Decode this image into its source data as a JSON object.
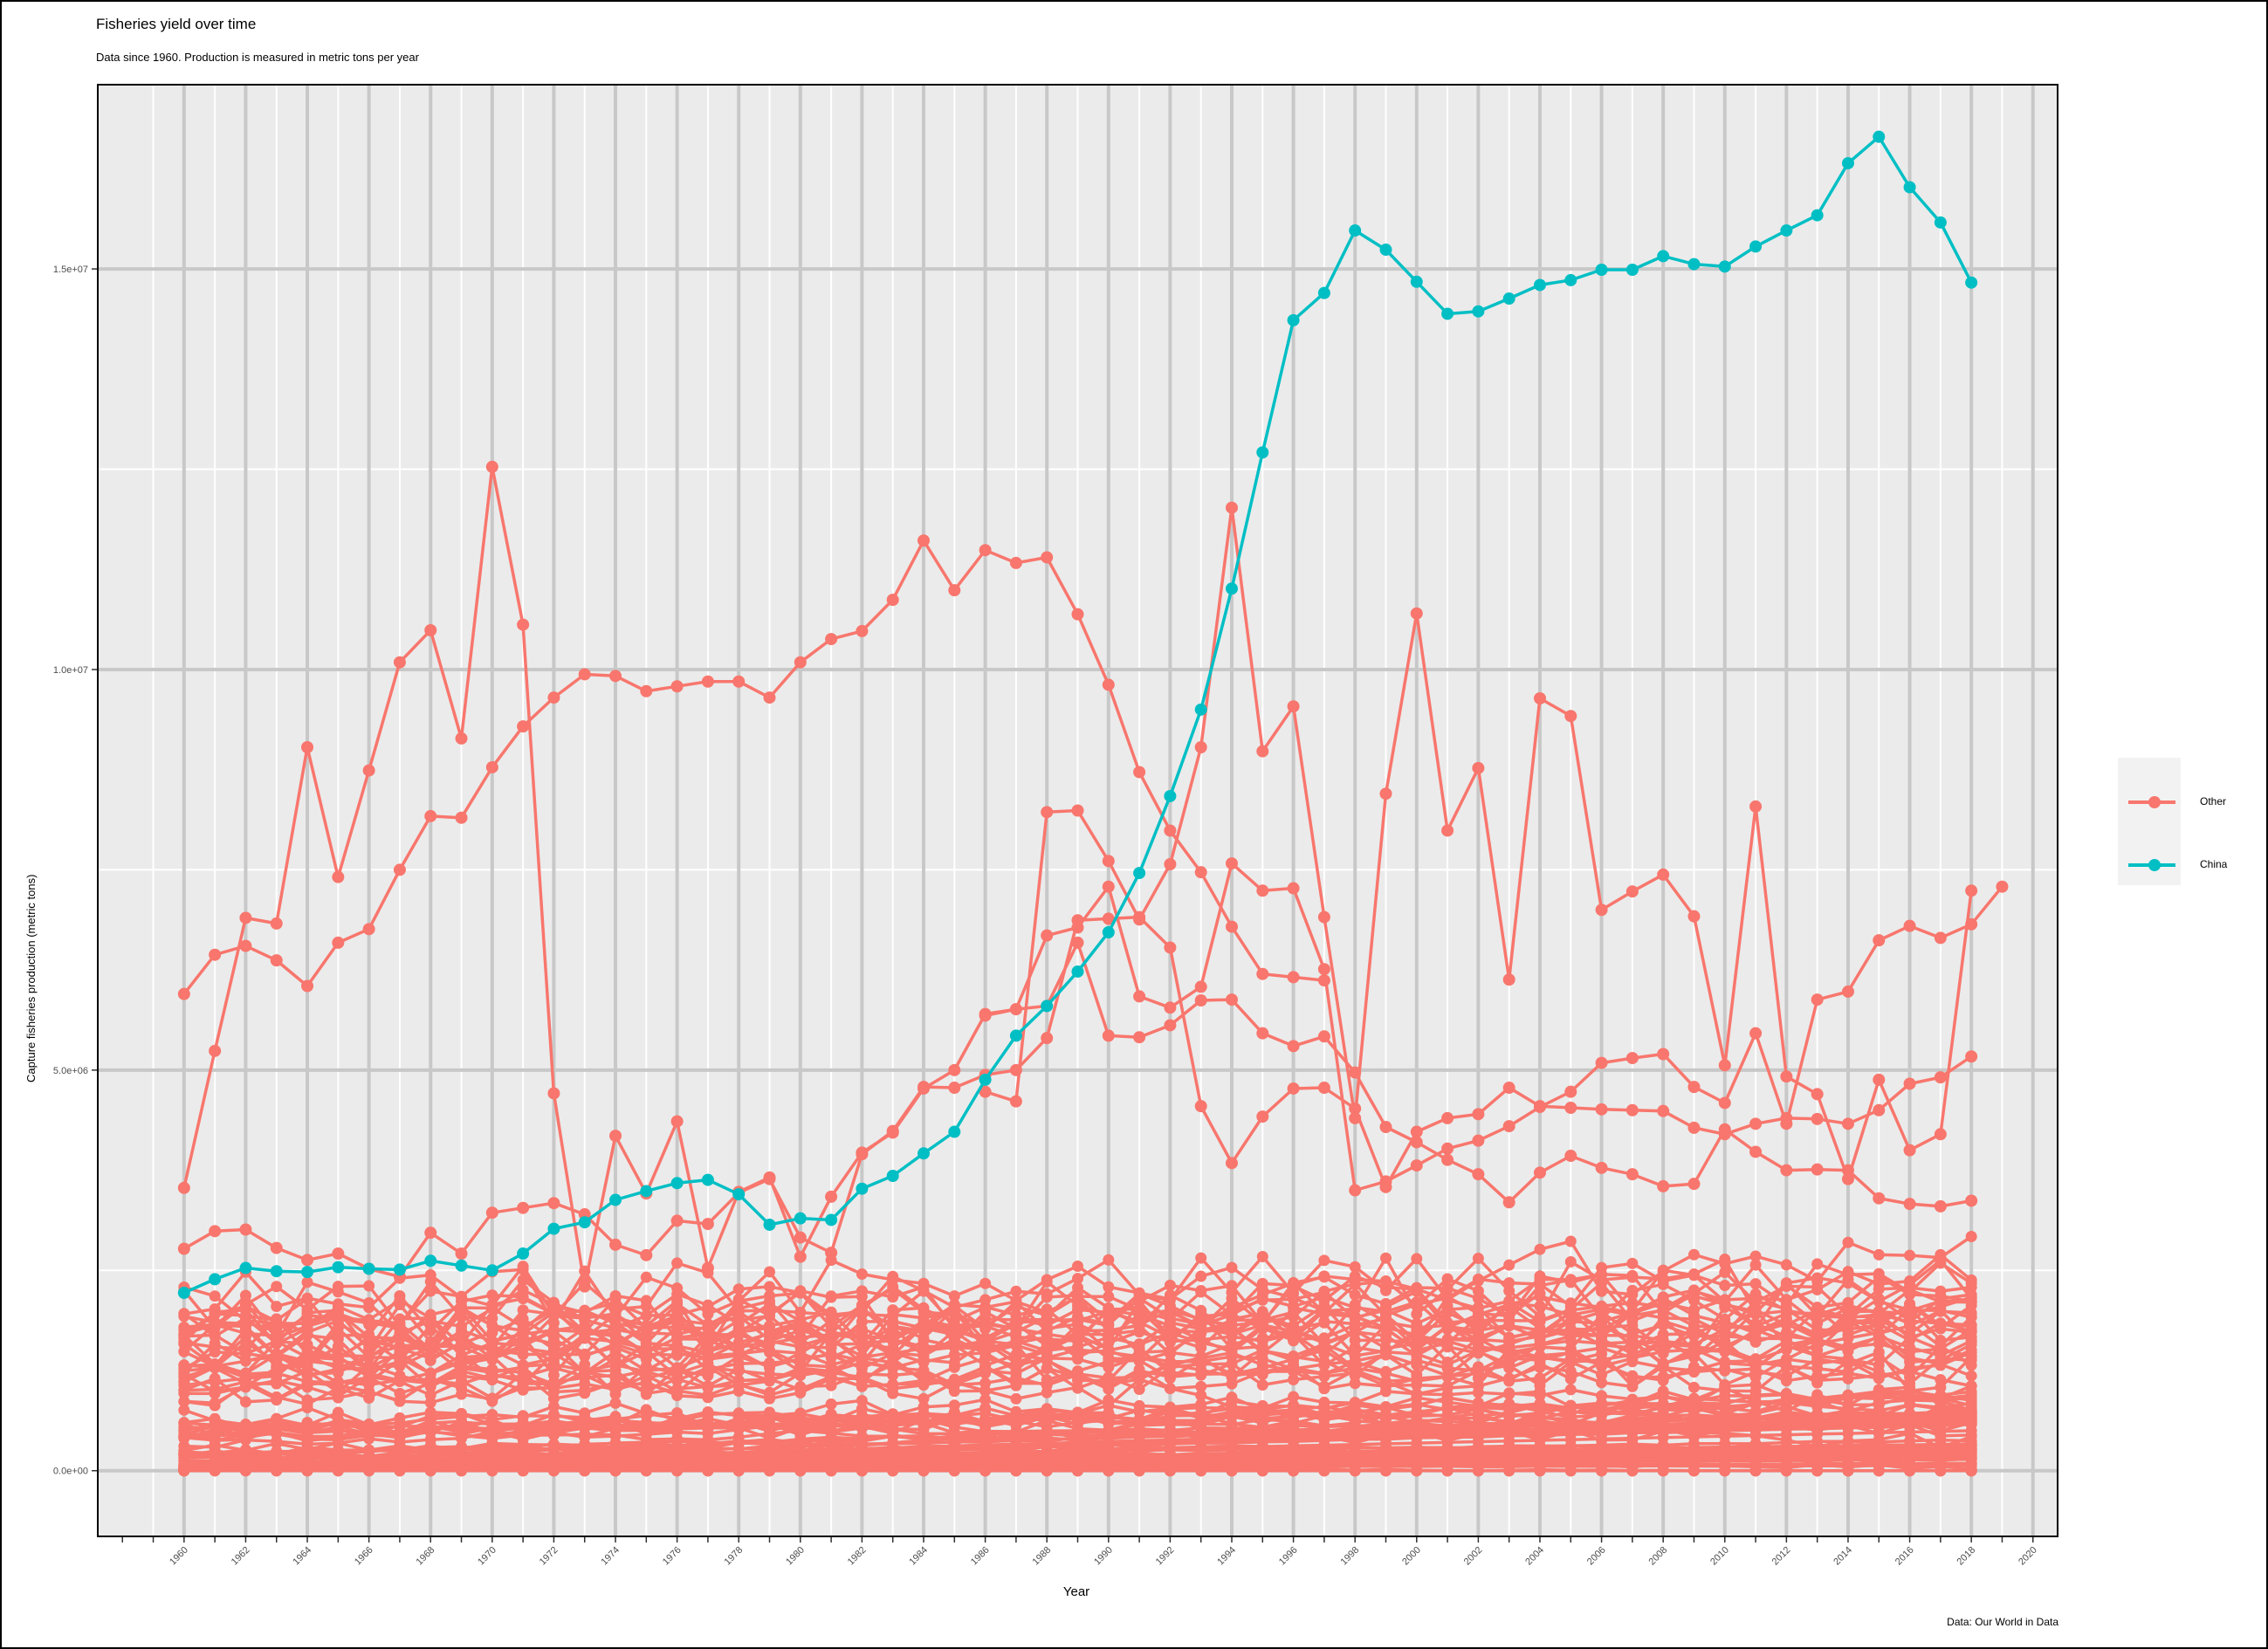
{
  "page": {
    "title": "Fisheries yield over time",
    "subtitle": "Data since 1960. Production is measured in metric tons per year",
    "caption": "Data: Our World in Data"
  },
  "colors": {
    "other": "#F8766D",
    "china": "#00BFC4",
    "panel": "#EBEBEB",
    "grid_major": "#C8C8C8",
    "grid_minor": "#FFFFFF"
  },
  "chart_data": {
    "type": "line",
    "title": "Fisheries yield over time",
    "subtitle": "Data since 1960. Production is measured in metric tons per year",
    "xlabel": "Year",
    "ylabel": "Capture fisheries production (metric tons)",
    "xlim": [
      1957.2,
      2020.8
    ],
    "ylim": [
      -820000,
      17300000
    ],
    "x_ticks": [
      1960,
      1962,
      1964,
      1966,
      1968,
      1970,
      1972,
      1974,
      1976,
      1978,
      1980,
      1982,
      1984,
      1986,
      1988,
      1990,
      1992,
      1994,
      1996,
      1998,
      2000,
      2002,
      2004,
      2006,
      2008,
      2010,
      2012,
      2014,
      2016,
      2018,
      2020
    ],
    "y_ticks": [
      0,
      5000000,
      10000000,
      15000000
    ],
    "y_tick_labels": [
      "0.0e+00",
      "5.0e+06",
      "1.0e+07",
      "1.5e+07"
    ],
    "legend": {
      "position": "right",
      "entries": [
        "Other",
        "China"
      ]
    },
    "grid": true,
    "china": {
      "name": "China",
      "x": [
        1960,
        1961,
        1962,
        1963,
        1964,
        1965,
        1966,
        1967,
        1968,
        1969,
        1970,
        1971,
        1972,
        1973,
        1974,
        1975,
        1976,
        1977,
        1978,
        1979,
        1980,
        1981,
        1982,
        1983,
        1984,
        1985,
        1986,
        1987,
        1988,
        1989,
        1990,
        1991,
        1992,
        1993,
        1994,
        1995,
        1996,
        1997,
        1998,
        1999,
        2000,
        2001,
        2002,
        2003,
        2004,
        2005,
        2006,
        2007,
        2008,
        2009,
        2010,
        2011,
        2012,
        2013,
        2014,
        2015,
        2016,
        2017,
        2018
      ],
      "y": [
        2220000,
        2390000,
        2530000,
        2490000,
        2480000,
        2540000,
        2520000,
        2510000,
        2620000,
        2560000,
        2500000,
        2710000,
        3020000,
        3100000,
        3380000,
        3490000,
        3590000,
        3630000,
        3450000,
        3070000,
        3150000,
        3130000,
        3520000,
        3680000,
        3960000,
        4230000,
        4880000,
        5430000,
        5800000,
        6230000,
        6720000,
        7460000,
        8420000,
        9500000,
        11010000,
        12710000,
        14360000,
        14700000,
        15480000,
        15240000,
        14840000,
        14440000,
        14470000,
        14630000,
        14800000,
        14860000,
        14990000,
        14990000,
        15160000,
        15060000,
        15030000,
        15280000,
        15480000,
        15670000,
        16320000,
        16650000,
        16020000,
        15580000,
        14830000
      ]
    },
    "other_highlighted": [
      {
        "name": "Other",
        "x_start": 1960,
        "y": [
          5950000,
          6440000,
          6550000,
          6370000,
          6050000,
          6590000,
          6760000,
          7500000,
          8170000,
          8150000,
          8780000,
          9290000,
          9650000,
          9940000,
          9920000,
          9730000,
          9790000,
          9850000,
          9850000,
          9650000,
          10090000,
          10380000,
          10480000,
          10870000,
          11610000,
          10990000,
          11490000,
          11330000,
          11400000,
          10690000,
          9810000,
          8720000,
          7990000,
          7470000,
          6790000,
          6200000,
          6160000,
          6120000
        ]
      },
      {
        "name": "Other",
        "x_start": 1960,
        "y": [
          3530000,
          5240000,
          6900000,
          6830000,
          9030000,
          7410000,
          8740000,
          10090000,
          10490000,
          9140000,
          12530000,
          10560000,
          4710000,
          2300000,
          4180000,
          3460000,
          4360000,
          2530000,
          3480000,
          3660000,
          2670000,
          3420000,
          3970000,
          4220000,
          4770000,
          5000000,
          5700000,
          5760000,
          5800000,
          6590000,
          5430000,
          5410000,
          5560000,
          5870000,
          5880000,
          5460000,
          5300000,
          5420000,
          4970000,
          4290000,
          4100000,
          3880000,
          3700000,
          3350000,
          3720000,
          3930000,
          3780000,
          3700000,
          3550000,
          3580000,
          4260000,
          3980000,
          3750000,
          3760000,
          3750000,
          3400000,
          3330000,
          3300000,
          3370000
        ]
      },
      {
        "name": "Other",
        "x_start": 1986,
        "y": [
          4730000,
          4610000,
          8220000,
          8240000,
          7610000,
          6880000,
          7570000,
          9030000,
          12020000,
          8980000,
          9540000,
          6910000,
          4400000,
          8450000,
          10700000,
          7990000,
          8770000,
          6130000,
          9640000,
          9420000,
          7000000,
          7230000,
          7440000,
          6920000,
          5060000,
          8290000,
          4920000,
          4700000,
          3640000,
          4880000,
          4000000,
          4200000,
          7240000
        ]
      },
      {
        "name": "Other",
        "x_start": 1960,
        "y": [
          2770000,
          2990000,
          3010000,
          2780000,
          2630000,
          2710000,
          2520000,
          2420000,
          2970000,
          2710000,
          3220000,
          3280000,
          3340000,
          3200000,
          2820000,
          2690000,
          3120000,
          3080000,
          3470000,
          3640000,
          2910000,
          2720000,
          3950000,
          4240000,
          4790000,
          4780000,
          4940000,
          5000000,
          5400000,
          6870000,
          6890000,
          6910000,
          6530000,
          4550000,
          3840000,
          4420000,
          4770000,
          4780000,
          4520000,
          3540000,
          4230000,
          4400000,
          4450000,
          4780000,
          4550000,
          4530000,
          4510000,
          4500000,
          4490000,
          4280000,
          4200000,
          4330000,
          4400000,
          4390000,
          4330000,
          4500000,
          4830000,
          4910000,
          5170000
        ]
      },
      {
        "name": "Other",
        "x_start": 1986,
        "y": [
          5680000,
          5760000,
          6680000,
          6780000,
          7290000,
          5920000,
          5780000,
          6040000,
          7580000,
          7240000,
          7270000,
          6260000,
          3500000,
          3610000,
          3810000,
          4020000,
          4120000,
          4300000,
          4540000,
          4730000,
          5090000,
          5150000,
          5200000,
          4790000,
          4590000,
          5460000,
          4330000,
          5880000,
          5980000,
          6620000,
          6800000,
          6650000,
          6820000,
          7290000
        ]
      }
    ],
    "other_background": {
      "name": "Other",
      "note": "many additional country series below 3.0e+06"
    }
  }
}
